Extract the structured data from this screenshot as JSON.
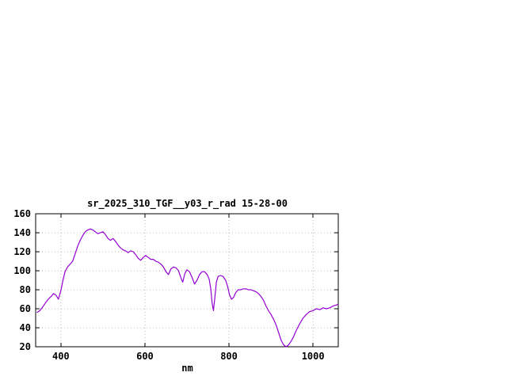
{
  "chart_data": {
    "type": "line",
    "title": "sr_2025_310_TGF__y03_r_rad 15-28-00",
    "xlabel": "nm",
    "ylabel": "",
    "xlim": [
      340,
      1060
    ],
    "ylim": [
      20,
      160
    ],
    "xticks": [
      400,
      600,
      800,
      1000
    ],
    "yticks": [
      20,
      40,
      60,
      80,
      100,
      120,
      140,
      160
    ],
    "grid": true,
    "legend": "none",
    "line_color": "#9400d3",
    "series": [
      {
        "name": "sr_2025_310_TGF__y03_r_rad",
        "x": [
          343,
          350,
          357,
          363,
          370,
          377,
          383,
          389,
          394,
          400,
          405,
          410,
          416,
          422,
          428,
          434,
          440,
          446,
          452,
          458,
          464,
          470,
          476,
          482,
          488,
          494,
          500,
          506,
          512,
          518,
          524,
          530,
          536,
          542,
          548,
          554,
          560,
          566,
          572,
          578,
          584,
          590,
          596,
          602,
          608,
          614,
          620,
          626,
          632,
          638,
          644,
          650,
          656,
          662,
          668,
          674,
          680,
          686,
          690,
          695,
          700,
          706,
          712,
          718,
          724,
          730,
          736,
          742,
          748,
          753,
          757,
          760,
          763,
          766,
          770,
          774,
          780,
          786,
          792,
          797,
          801,
          806,
          811,
          816,
          822,
          828,
          834,
          840,
          846,
          852,
          858,
          864,
          870,
          876,
          882,
          888,
          894,
          900,
          906,
          912,
          918,
          924,
          930,
          936,
          942,
          948,
          954,
          960,
          968,
          976,
          984,
          992,
          1000,
          1008,
          1016,
          1024,
          1032,
          1040,
          1048,
          1056,
          1060
        ],
        "y": [
          56,
          58,
          62,
          66,
          70,
          73,
          76,
          74,
          70,
          79,
          90,
          99,
          104,
          107,
          110,
          118,
          126,
          132,
          137,
          141,
          143,
          144,
          143,
          141,
          139,
          140,
          141,
          138,
          134,
          132,
          134,
          131,
          127,
          124,
          122,
          121,
          119,
          121,
          120,
          117,
          113,
          111,
          114,
          116,
          114,
          112,
          112,
          110,
          109,
          107,
          104,
          99,
          96,
          102,
          104,
          103,
          100,
          92,
          88,
          97,
          101,
          99,
          93,
          86,
          90,
          96,
          99,
          99,
          96,
          91,
          80,
          66,
          58,
          70,
          88,
          94,
          95,
          94,
          90,
          83,
          75,
          70,
          72,
          77,
          80,
          80,
          81,
          81,
          80,
          80,
          79,
          78,
          76,
          73,
          69,
          63,
          58,
          54,
          49,
          43,
          35,
          27,
          22,
          20,
          22,
          26,
          31,
          37,
          44,
          50,
          54,
          57,
          58,
          60,
          59,
          61,
          60,
          61,
          63,
          64,
          65
        ]
      }
    ]
  }
}
